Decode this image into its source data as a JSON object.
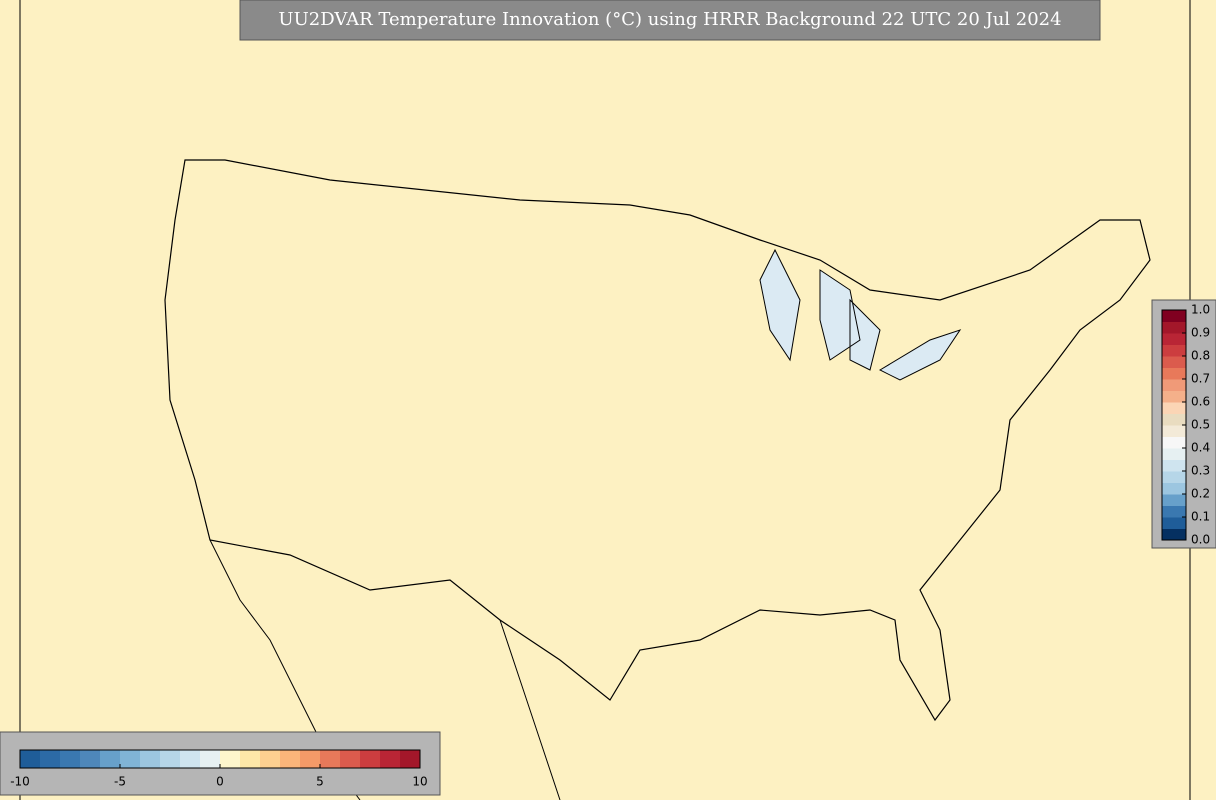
{
  "title": "UU2DVAR Temperature Innovation (°C) using HRRR Background 22 UTC 20 Jul 2024",
  "horizontal_colorbar": {
    "lim": [
      -10,
      10
    ],
    "ticks": [
      -10,
      -5,
      0,
      5,
      10
    ],
    "colors": [
      "#1f5d99",
      "#2c6aa6",
      "#3a78b0",
      "#4e87ba",
      "#67a0ca",
      "#80b4d6",
      "#9cc6e0",
      "#b6d6e8",
      "#cfe4ef",
      "#e6f0f2",
      "#fdf6cc",
      "#fde8a8",
      "#fdd090",
      "#fbb57a",
      "#f49a68",
      "#e8795a",
      "#db5b4d",
      "#cc3d3f",
      "#b92535",
      "#a3172a"
    ]
  },
  "vertical_colorbar": {
    "lim": [
      0,
      1
    ],
    "ticks": [
      {
        "value": 0,
        "label": "0.0"
      },
      {
        "value": 0.1,
        "label": "0.1"
      },
      {
        "value": 0.2,
        "label": "0.2"
      },
      {
        "value": 0.3,
        "label": "0.3"
      },
      {
        "value": 0.4,
        "label": "0.4"
      },
      {
        "value": 0.5,
        "label": "0.5"
      },
      {
        "value": 0.6,
        "label": "0.6"
      },
      {
        "value": 0.7,
        "label": "0.7"
      },
      {
        "value": 0.8,
        "label": "0.8"
      },
      {
        "value": 0.9,
        "label": "0.9"
      },
      {
        "value": 1,
        "label": "1.0"
      }
    ],
    "colors": [
      "#053061",
      "#1f5d99",
      "#3a78b0",
      "#67a0ca",
      "#9cc6e0",
      "#b6d6e8",
      "#cfe4ef",
      "#e6f0f2",
      "#f7f7f7",
      "#f3ead8",
      "#e9dcc0",
      "#fbd5b5",
      "#f4b08a",
      "#f09a78",
      "#e8795a",
      "#db5b4d",
      "#cc3d3f",
      "#b92535",
      "#a3172a",
      "#800020"
    ]
  }
}
